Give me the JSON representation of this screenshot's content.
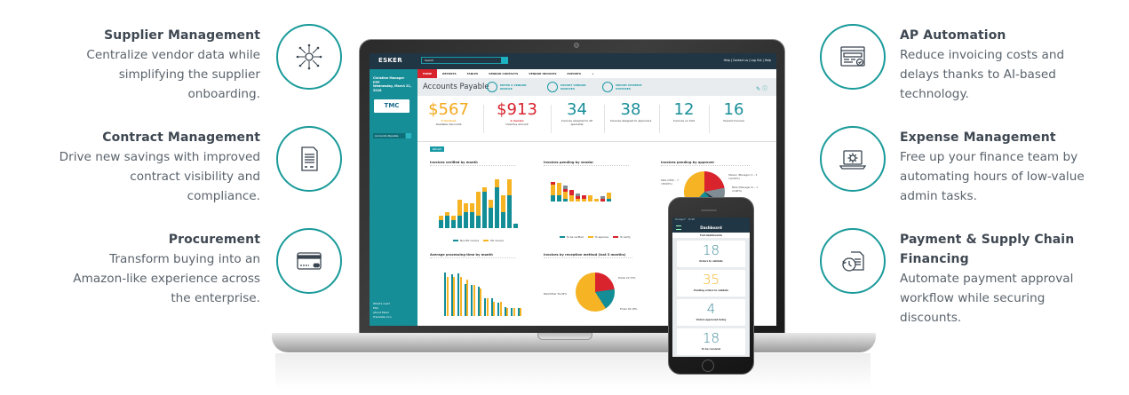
{
  "features_left": [
    {
      "title": "Supplier Management",
      "desc": [
        "Centralize vendor data while",
        "simplifying the supplier",
        "onboarding."
      ],
      "icon": "network-hub-icon"
    },
    {
      "title": "Contract Management",
      "desc": [
        "Drive new savings with improved",
        "contract visibility and",
        "compliance."
      ],
      "icon": "contract-document-icon"
    },
    {
      "title": "Procurement",
      "desc": [
        "Transform buying into an",
        "Amazon-like experience across",
        "the enterprise."
      ],
      "icon": "credit-card-icon"
    }
  ],
  "features_right": [
    {
      "title": "AP Automation",
      "desc": [
        "Reduce invoicing costs and",
        "delays thanks to AI-based",
        "technology."
      ],
      "icon": "browser-check-icon"
    },
    {
      "title": "Expense Management",
      "desc": [
        "Free up your finance team by",
        "automating hours of low-value",
        "admin tasks."
      ],
      "icon": "laptop-gear-icon"
    },
    {
      "title": "Payment & Supply Chain",
      "title2": "Financing",
      "desc": [
        "Automate payment approval",
        "workflow while securing",
        "discounts."
      ],
      "icon": "clock-document-icon"
    }
  ],
  "app": {
    "logo": "ESKER",
    "search_placeholder": "Search",
    "top_links": "Help | Contact us | Log Out | Help",
    "user_name": "Christine Manager",
    "user_role": "PPP",
    "user_date": "Wednesday, March 21, 2018",
    "company_logo": "TMC",
    "sidebar_select": "Accounts Payable",
    "sidebar_links": [
      "What's new?",
      "FAQ",
      "About Esker",
      "Translate icon"
    ],
    "tabs": [
      "HOME",
      "REPORTS",
      "TABLES",
      "VENDOR CONTACTS",
      "VENDOR INVOICES",
      "EXPORTS",
      "+"
    ],
    "page_title": "Accounts Payable",
    "quick_actions": [
      {
        "label": "ENTER A VENDOR INVOICE"
      },
      {
        "label": "EXPORT VENDOR INVOICES"
      },
      {
        "label": "IMPORT PAYMENT STATUSES"
      }
    ],
    "kpis": [
      {
        "value": "$567",
        "sub": "3 invoices",
        "label": "Available discounts",
        "color": "#f4a81d"
      },
      {
        "value": "$913",
        "sub": "1 invoice",
        "label": "Overdue amount",
        "color": "#d9232d"
      },
      {
        "value": "34",
        "sub": "",
        "label": "Invoices assigned to AP specialist",
        "color": "#1a8f9a"
      },
      {
        "value": "38",
        "sub": "",
        "label": "Invoices assigned to approvers",
        "color": "#1a8f9a"
      },
      {
        "value": "12",
        "sub": "",
        "label": "Invoices on hold",
        "color": "#1a8f9a"
      },
      {
        "value": "16",
        "sub": "",
        "label": "Unpaid invoices",
        "color": "#1a8f9a"
      }
    ],
    "filter_pill": "Refresh"
  },
  "chart_data": [
    {
      "type": "bar",
      "title": "Invoices verified by month",
      "stacked": true,
      "xlabel": "Verification date",
      "ylabel": "Number of invoices",
      "categories": [
        "M1",
        "M2",
        "M3",
        "M4",
        "M5",
        "M6",
        "M7",
        "M8",
        "M9",
        "M10",
        "M11",
        "M12",
        "M13"
      ],
      "series": [
        {
          "name": "Non PO invoice",
          "color": "#138d96",
          "values": [
            2,
            3,
            2,
            3,
            4,
            4,
            3,
            9,
            5,
            10,
            4,
            8,
            1
          ]
        },
        {
          "name": "PO invoice",
          "color": "#f6b323",
          "values": [
            1,
            1,
            1,
            4,
            2,
            2,
            6,
            1,
            2,
            2,
            4,
            4,
            0
          ]
        }
      ]
    },
    {
      "type": "bar",
      "title": "Invoices pending by vendor",
      "stacked": true,
      "ylabel": "Number of invoices",
      "categories": [
        "V1",
        "V2",
        "V3",
        "V4",
        "V5",
        "V6",
        "V7",
        "V8",
        "V9",
        "V10"
      ],
      "series": [
        {
          "name": "To be verified",
          "color": "#138d96",
          "values": [
            1.5,
            1.5,
            0.7,
            0,
            0,
            0,
            0,
            0,
            0,
            0.7
          ]
        },
        {
          "name": "To approve",
          "color": "#f6b323",
          "values": [
            2.8,
            3.2,
            1.8,
            1.5,
            0.7,
            0.7,
            1.5,
            0.7,
            0,
            1.5
          ]
        },
        {
          "name": "To verify",
          "color": "#d9232d",
          "values": [
            0.7,
            0,
            0.7,
            1.5,
            0.7,
            0.8,
            0,
            0,
            0.7,
            0
          ]
        },
        {
          "name": "Other",
          "color": "#808c94",
          "values": [
            0,
            0,
            0.8,
            0,
            0.7,
            0,
            0,
            0,
            0.7,
            0
          ]
        }
      ]
    },
    {
      "type": "pie",
      "title": "Invoices pending by approver",
      "slices": [
        {
          "label": "Kate (CEO) - 7 (38.00%)",
          "value": 38,
          "color": "#f6b323"
        },
        {
          "label": "Approver 2",
          "value": 22,
          "color": "#d9232d"
        },
        {
          "label": "Steven (Manager 1) - 3 (12.00%)",
          "value": 12,
          "color": "#808c94"
        },
        {
          "label": "Mike (Manager 2) - 1 (4.00%)",
          "value": 4,
          "color": "#203644"
        },
        {
          "label": "Other",
          "value": 24,
          "color": "#138d96"
        }
      ]
    },
    {
      "type": "bar",
      "title": "Average processing time by month",
      "ylabel": "Average processing time (days)",
      "categories": [
        "M1",
        "M2",
        "M3",
        "M4",
        "M5",
        "M6",
        "M7",
        "M8",
        "M9",
        "M10",
        "M11",
        "M12"
      ],
      "series": [
        {
          "name": "Non PO invoice",
          "color": "#138d96",
          "values": [
            9,
            8.5,
            8.7,
            6.5,
            6.3,
            6,
            3.7,
            3.6,
            2.7,
            1.8,
            1.7,
            1.7
          ]
        },
        {
          "name": "PO invoice",
          "color": "#f6b323",
          "values": [
            8,
            8,
            8,
            7.5,
            6.3,
            5.6,
            3.7,
            3,
            3,
            1.7,
            1.7,
            1.7
          ]
        }
      ]
    },
    {
      "type": "pie",
      "title": "Invoices by reception method (last 3 months)",
      "slices": [
        {
          "label": "Portal 22.73%",
          "value": 22.73,
          "color": "#d9232d"
        },
        {
          "label": "Email 18.18%",
          "value": 18.18,
          "color": "#138d96"
        },
        {
          "label": "Mail/Other 59.09%",
          "value": 59.09,
          "color": "#f6b323"
        }
      ]
    }
  ],
  "phone": {
    "carrier": "Orange F",
    "time": "15:48",
    "header": "Dashboard",
    "subheader": "Full dashboards",
    "cards": [
      {
        "value": "18",
        "label": "Orders to validate",
        "color": "#3e8a99"
      },
      {
        "value": "35",
        "label": "Pending orders to validate",
        "color": "#f6b323"
      },
      {
        "value": "4",
        "label": "Orders approved today",
        "color": "#3e8a99"
      },
      {
        "value": "18",
        "label": "To be received",
        "color": "#3e8a99"
      }
    ]
  }
}
